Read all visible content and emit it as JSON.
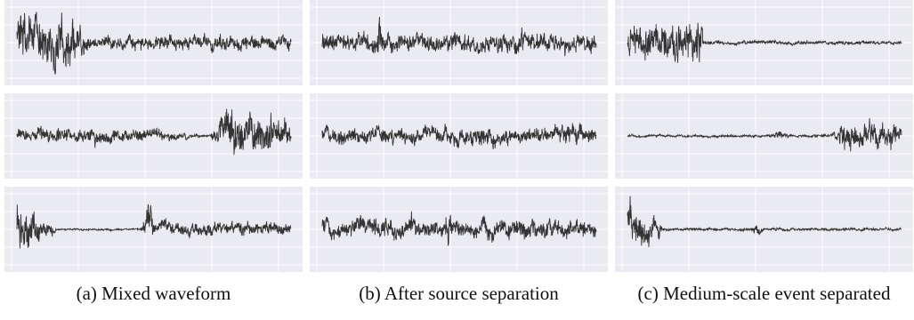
{
  "chart_data": [
    {
      "panel": "a",
      "caption": "(a) Mixed waveform",
      "type": "line",
      "grid": true,
      "background": "#eaeaf2",
      "line_color": "#333333",
      "series": [
        {
          "profile": [
            [
              0,
              22
            ],
            [
              0.2,
              22
            ],
            [
              0.26,
              7
            ],
            [
              0.28,
              6
            ],
            [
              1,
              6
            ]
          ],
          "seed": 11
        },
        {
          "profile": [
            [
              0,
              6
            ],
            [
              0.52,
              6
            ],
            [
              0.53,
              5
            ],
            [
              0.6,
              3
            ],
            [
              0.7,
              0.6
            ],
            [
              0.72,
              6
            ],
            [
              0.78,
              20
            ],
            [
              0.9,
              18
            ],
            [
              1,
              9
            ]
          ],
          "seed": 23
        },
        {
          "profile": [
            [
              0,
              22
            ],
            [
              0.12,
              6
            ],
            [
              0.15,
              0.8
            ],
            [
              0.45,
              0.8
            ],
            [
              0.46,
              9
            ],
            [
              0.48,
              22
            ],
            [
              0.5,
              6
            ],
            [
              1,
              6
            ]
          ],
          "seed": 37
        }
      ]
    },
    {
      "panel": "b",
      "caption": "(b) After source separation",
      "type": "line",
      "grid": true,
      "background": "#eaeaf2",
      "line_color": "#333333",
      "series": [
        {
          "profile": [
            [
              0,
              8
            ],
            [
              0.2,
              8
            ],
            [
              0.21,
              25
            ],
            [
              0.22,
              8
            ],
            [
              1,
              8
            ]
          ],
          "seed": 41
        },
        {
          "profile": [
            [
              0,
              7
            ],
            [
              0.5,
              8
            ],
            [
              0.65,
              9
            ],
            [
              0.7,
              5
            ],
            [
              0.85,
              7
            ],
            [
              0.9,
              10
            ],
            [
              1,
              7
            ]
          ],
          "seed": 53
        },
        {
          "profile": [
            [
              0,
              8
            ],
            [
              0.45,
              8
            ],
            [
              0.46,
              16
            ],
            [
              0.48,
              8
            ],
            [
              1,
              8
            ]
          ],
          "seed": 67
        }
      ]
    },
    {
      "panel": "c",
      "caption": "(c) Medium-scale event separated",
      "type": "line",
      "grid": true,
      "background": "#eaeaf2",
      "line_color": "#333333",
      "series": [
        {
          "profile": [
            [
              0,
              12
            ],
            [
              0.2,
              20
            ],
            [
              0.27,
              18
            ],
            [
              0.28,
              2
            ],
            [
              0.4,
              1.5
            ],
            [
              1,
              1.5
            ]
          ],
          "seed": 71
        },
        {
          "profile": [
            [
              0,
              1
            ],
            [
              0.52,
              1
            ],
            [
              0.55,
              4
            ],
            [
              0.6,
              1
            ],
            [
              0.75,
              1.5
            ],
            [
              0.78,
              12
            ],
            [
              1,
              11
            ]
          ],
          "seed": 83
        },
        {
          "profile": [
            [
              0,
              18
            ],
            [
              0.12,
              10
            ],
            [
              0.13,
              1.2
            ],
            [
              0.45,
              1.2
            ],
            [
              0.47,
              5
            ],
            [
              0.5,
              1.2
            ],
            [
              1,
              1.2
            ]
          ],
          "seed": 97
        }
      ]
    }
  ]
}
